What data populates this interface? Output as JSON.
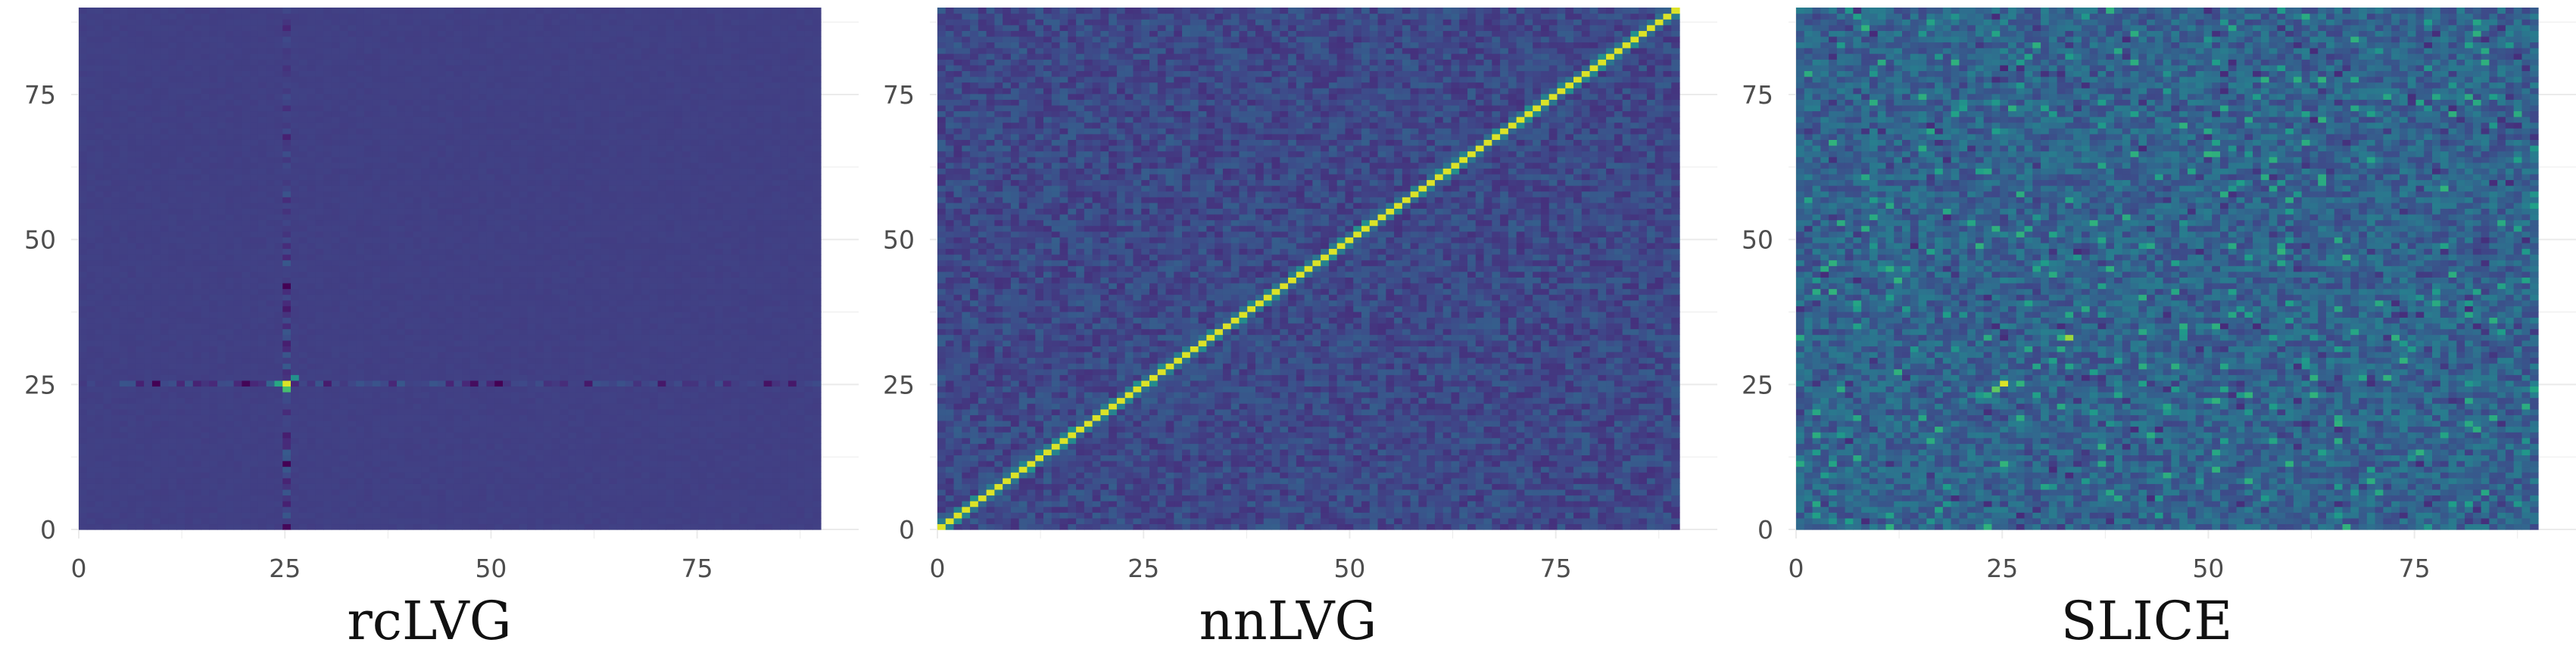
{
  "chart_data": [
    {
      "type": "heatmap",
      "title": "rcLVG",
      "xlabel": "",
      "ylabel": "",
      "xlim": [
        0,
        90
      ],
      "ylim": [
        0,
        90
      ],
      "x_ticks": [
        0,
        25,
        50,
        75
      ],
      "y_ticks": [
        0,
        25,
        50,
        75
      ],
      "grid": true,
      "colorscale": "viridis",
      "pattern": "cross",
      "cross_center": [
        25,
        25
      ],
      "highlights": [
        {
          "x": 25,
          "y": 25,
          "level": 0.95
        },
        {
          "x": 25,
          "y": 24,
          "level": 0.7
        },
        {
          "x": 24,
          "y": 25,
          "level": 0.6
        },
        {
          "x": 26,
          "y": 26,
          "level": 0.5
        }
      ]
    },
    {
      "type": "heatmap",
      "title": "nnLVG",
      "xlabel": "",
      "ylabel": "",
      "xlim": [
        0,
        90
      ],
      "ylim": [
        0,
        90
      ],
      "x_ticks": [
        0,
        25,
        50,
        75
      ],
      "y_ticks": [
        0,
        25,
        50,
        75
      ],
      "grid": true,
      "colorscale": "viridis",
      "pattern": "diagonal",
      "diagonal_level": 0.95
    },
    {
      "type": "heatmap",
      "title": "SLICE",
      "xlabel": "",
      "ylabel": "",
      "xlim": [
        0,
        90
      ],
      "ylim": [
        0,
        90
      ],
      "x_ticks": [
        0,
        25,
        50,
        75
      ],
      "y_ticks": [
        0,
        25,
        50,
        75
      ],
      "grid": true,
      "colorscale": "viridis",
      "pattern": "noise",
      "highlights": [
        {
          "x": 25,
          "y": 25,
          "level": 0.95
        },
        {
          "x": 24,
          "y": 24,
          "level": 0.75
        },
        {
          "x": 33,
          "y": 33,
          "level": 0.85
        },
        {
          "x": 23,
          "y": 23,
          "level": 0.6
        },
        {
          "x": 87,
          "y": 86,
          "level": 0.45
        }
      ]
    }
  ],
  "colors": {
    "background": "#ffffff",
    "tick_text": "#4d4d4d",
    "gridline": "#ebebeb"
  }
}
